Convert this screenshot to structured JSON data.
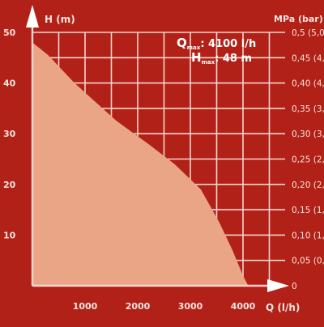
{
  "colors": {
    "background": "#b22117",
    "grid": "#f4d5cf",
    "area_fill": "#e9a586",
    "text": "#f7e3dd"
  },
  "annotation": {
    "q_symbol": "Q",
    "q_subscript": "max",
    "q_value": ": 4100 l/h",
    "h_symbol": "H",
    "h_subscript": "max",
    "h_value": ": 48 m"
  },
  "chart_data": {
    "type": "area",
    "left_axis_label": "H (m)",
    "right_axis_title": "MPa (bar)",
    "x_axis_label": "Q (l/h)",
    "x_ticks": [
      {
        "value": 1000,
        "label": "1000"
      },
      {
        "value": 2000,
        "label": "2000"
      },
      {
        "value": 3000,
        "label": "3000"
      },
      {
        "value": 4000,
        "label": "4000"
      }
    ],
    "y_ticks": [
      {
        "value": 10,
        "label": "10"
      },
      {
        "value": 20,
        "label": "20"
      },
      {
        "value": 30,
        "label": "30"
      },
      {
        "value": 40,
        "label": "40"
      },
      {
        "value": 50,
        "label": "50"
      }
    ],
    "right_ticks": [
      {
        "value": 0,
        "label": "0"
      },
      {
        "value": 5,
        "label": "0,05 (0,5)"
      },
      {
        "value": 10,
        "label": "0,10 (1,0)"
      },
      {
        "value": 15,
        "label": "0,15 (1,5)"
      },
      {
        "value": 20,
        "label": "0,20 (2,0)"
      },
      {
        "value": 25,
        "label": "0,25 (2,5)"
      },
      {
        "value": 30,
        "label": "0,30 (3,0)"
      },
      {
        "value": 35,
        "label": "0,35 (3,5)"
      },
      {
        "value": 40,
        "label": "0,40 (4,0)"
      },
      {
        "value": 45,
        "label": "0,45 (4,5)"
      },
      {
        "value": 50,
        "label": "0,5 (5,0)"
      }
    ],
    "xlim": [
      0,
      4800
    ],
    "ylim": [
      0,
      50
    ],
    "grid": true,
    "x": [
      0,
      300,
      800,
      1600,
      2200,
      2700,
      3200,
      3550,
      3800,
      4000,
      4100
    ],
    "y": [
      48,
      45.5,
      40,
      32.5,
      28,
      24,
      19,
      12.5,
      7,
      2,
      0
    ]
  }
}
